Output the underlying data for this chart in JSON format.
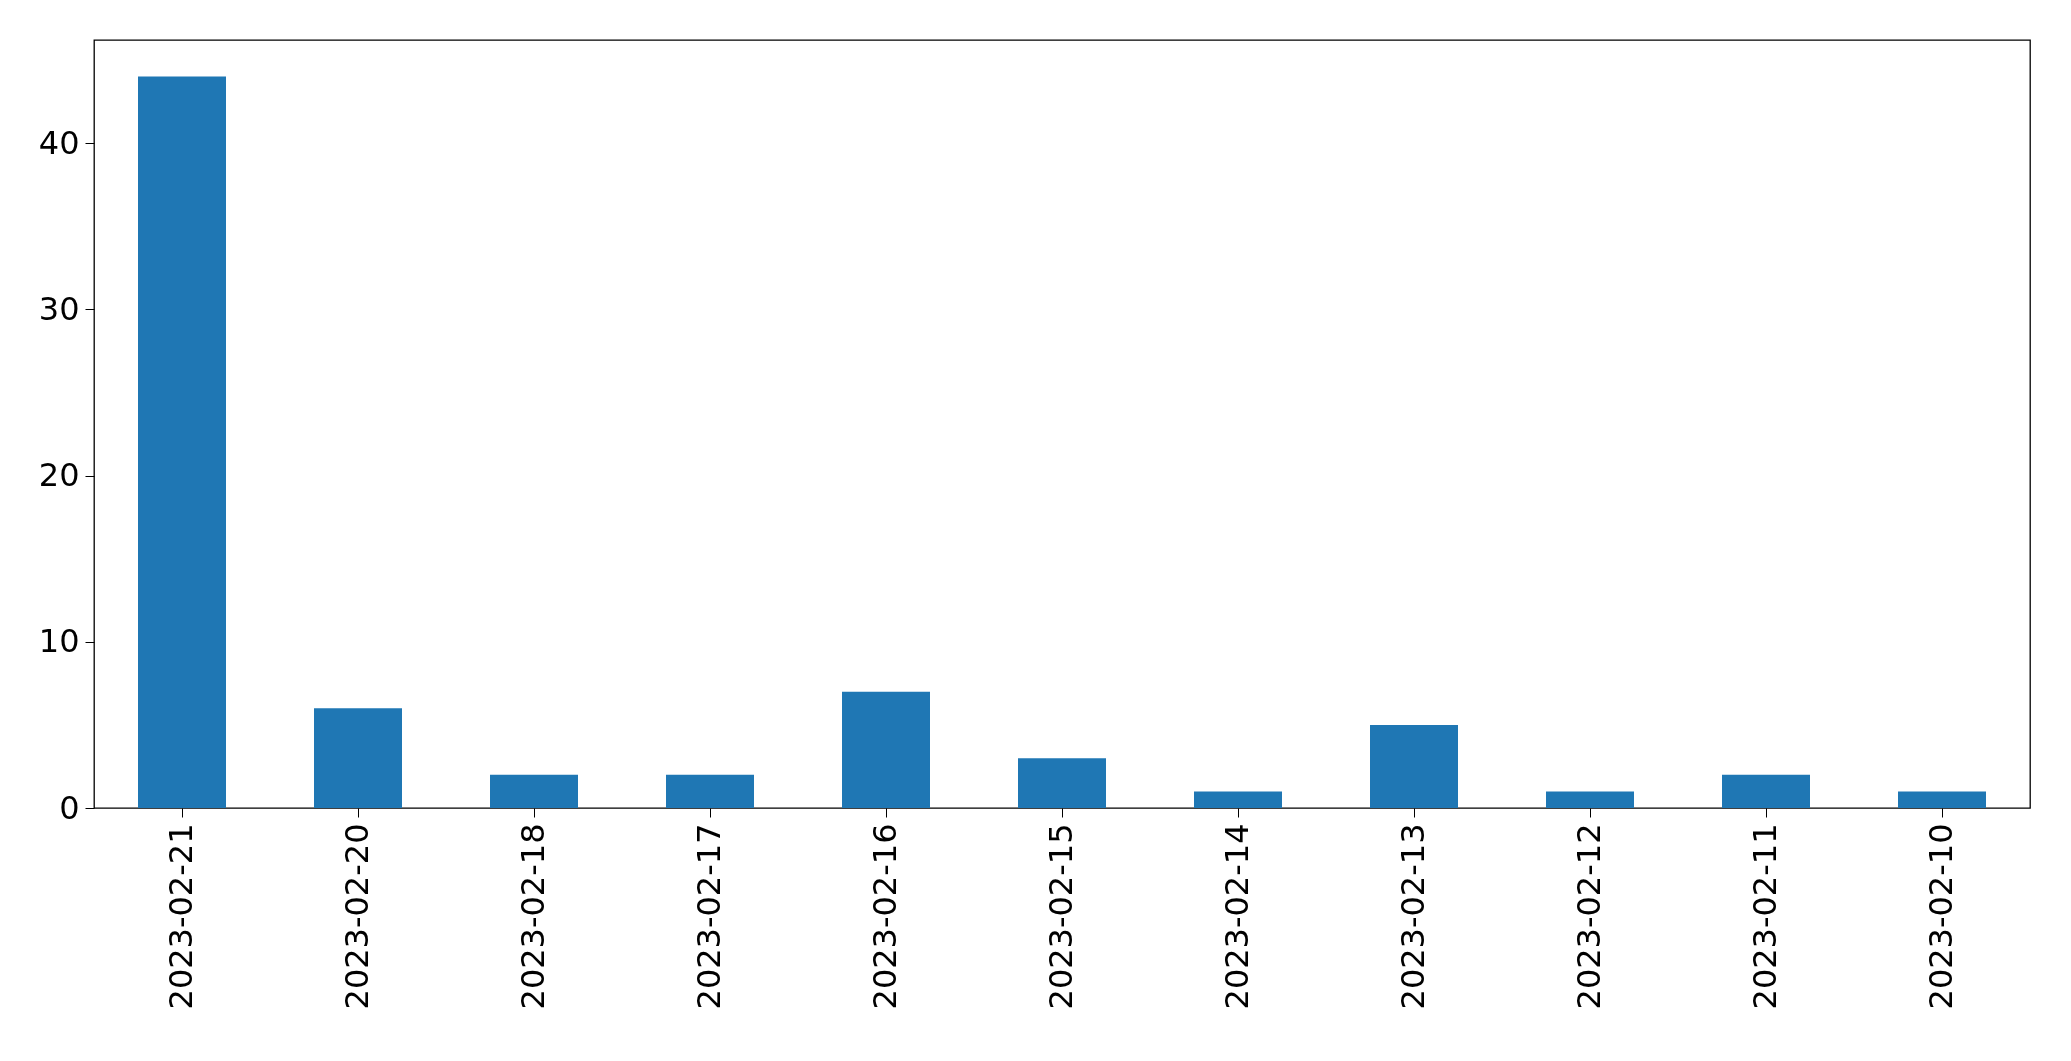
{
  "chart_data": {
    "type": "bar",
    "categories": [
      "2023-02-21",
      "2023-02-20",
      "2023-02-18",
      "2023-02-17",
      "2023-02-16",
      "2023-02-15",
      "2023-02-14",
      "2023-02-13",
      "2023-02-12",
      "2023-02-11",
      "2023-02-10"
    ],
    "values": [
      44,
      6,
      2,
      2,
      7,
      3,
      1,
      5,
      1,
      2,
      1
    ],
    "color": "#1f77b4",
    "ylim": [
      0,
      46.2
    ],
    "yticks": [
      0,
      10,
      20,
      30,
      40
    ],
    "grid": false
  }
}
